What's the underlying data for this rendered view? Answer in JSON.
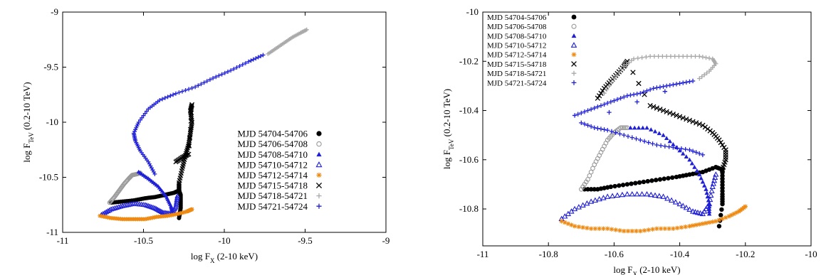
{
  "chart_data": [
    {
      "type": "scatter",
      "xlabel": "log F",
      "xlabel_sub": "X",
      "xlabel_tail": " (2-10 keV)",
      "ylabel": "log F",
      "ylabel_sub": "TeV",
      "ylabel_tail": " (0.2-10 TeV)",
      "xlim": [
        -11,
        -9
      ],
      "ylim": [
        -11,
        -9
      ],
      "xticks": [
        -11,
        -10.5,
        -10,
        -9.5,
        -9
      ],
      "yticks": [
        -11,
        -10.5,
        -10,
        -9.5,
        -9
      ],
      "xtick_labels": [
        "-11",
        "-10.5",
        "-10",
        "-9.5",
        "-9"
      ],
      "ytick_labels": [
        "-11",
        "-10.5",
        "-10",
        "-9.5",
        "-9"
      ],
      "legend_position": "bottom-right",
      "series": [
        {
          "name": "MJD 54704-54706",
          "color": "#000000",
          "marker": "filled-circle",
          "points": [
            [
              -10.7,
              -10.73
            ],
            [
              -10.63,
              -10.72
            ],
            [
              -10.56,
              -10.71
            ],
            [
              -10.49,
              -10.69
            ],
            [
              -10.43,
              -10.68
            ],
            [
              -10.37,
              -10.66
            ],
            [
              -10.31,
              -10.64
            ],
            [
              -10.28,
              -10.62
            ],
            [
              -10.27,
              -10.66
            ],
            [
              -10.27,
              -10.72
            ],
            [
              -10.27,
              -10.78
            ],
            [
              -10.28,
              -10.87
            ]
          ]
        },
        {
          "name": "MJD 54706-54708",
          "color": "#9a9a9a",
          "marker": "open-circle",
          "points": [
            [
              -10.71,
              -10.73
            ],
            [
              -10.68,
              -10.68
            ],
            [
              -10.65,
              -10.62
            ],
            [
              -10.62,
              -10.56
            ],
            [
              -10.59,
              -10.51
            ],
            [
              -10.57,
              -10.48
            ],
            [
              -10.54,
              -10.47
            ],
            [
              -10.52,
              -10.46
            ]
          ]
        },
        {
          "name": "MJD 54708-54710",
          "color": "#1f1fd6",
          "marker": "filled-triangle",
          "points": [
            [
              -10.53,
              -10.45
            ],
            [
              -10.47,
              -10.51
            ],
            [
              -10.41,
              -10.58
            ],
            [
              -10.36,
              -10.67
            ],
            [
              -10.33,
              -10.76
            ],
            [
              -10.32,
              -10.82
            ],
            [
              -10.31,
              -10.83
            ]
          ]
        },
        {
          "name": "MJD 54710-54712",
          "color": "#1f1fd6",
          "marker": "open-triangle",
          "points": [
            [
              -10.76,
              -10.84
            ],
            [
              -10.7,
              -10.79
            ],
            [
              -10.63,
              -10.76
            ],
            [
              -10.56,
              -10.74
            ],
            [
              -10.49,
              -10.75
            ],
            [
              -10.43,
              -10.78
            ],
            [
              -10.38,
              -10.82
            ],
            [
              -10.33,
              -10.83
            ],
            [
              -10.3,
              -10.77
            ],
            [
              -10.29,
              -10.67
            ]
          ]
        },
        {
          "name": "MJD 54712-54714",
          "color": "#ee8a12",
          "marker": "asterisk",
          "points": [
            [
              -10.77,
              -10.85
            ],
            [
              -10.7,
              -10.87
            ],
            [
              -10.63,
              -10.88
            ],
            [
              -10.56,
              -10.88
            ],
            [
              -10.49,
              -10.88
            ],
            [
              -10.42,
              -10.86
            ],
            [
              -10.35,
              -10.85
            ],
            [
              -10.28,
              -10.83
            ],
            [
              -10.23,
              -10.81
            ],
            [
              -10.2,
              -10.79
            ]
          ]
        },
        {
          "name": "MJD 54715-54718",
          "color": "#000000",
          "marker": "cross",
          "points": [
            [
              -10.3,
              -10.36
            ],
            [
              -10.26,
              -10.32
            ],
            [
              -10.22,
              -10.29
            ],
            [
              -10.2,
              -9.84
            ],
            [
              -10.21,
              -9.9
            ],
            [
              -10.2,
              -10.0
            ],
            [
              -10.21,
              -10.1
            ],
            [
              -10.22,
              -10.2
            ],
            [
              -10.24,
              -10.3
            ],
            [
              -10.26,
              -10.42
            ],
            [
              -10.28,
              -10.55
            ],
            [
              -10.28,
              -10.63
            ]
          ]
        },
        {
          "name": "MJD 54718-54721",
          "color": "#a9a9a9",
          "marker": "plus",
          "points": [
            [
              -9.73,
              -9.38
            ],
            [
              -9.68,
              -9.33
            ],
            [
              -9.63,
              -9.28
            ],
            [
              -9.58,
              -9.23
            ],
            [
              -9.53,
              -9.19
            ],
            [
              -9.49,
              -9.16
            ]
          ]
        },
        {
          "name": "MJD 54721-54724",
          "color": "#1f1fd6",
          "marker": "plus",
          "points": [
            [
              -10.43,
              -10.47
            ],
            [
              -10.47,
              -10.36
            ],
            [
              -10.52,
              -10.26
            ],
            [
              -10.55,
              -10.17
            ],
            [
              -10.56,
              -10.1
            ],
            [
              -10.53,
              -10.0
            ],
            [
              -10.47,
              -9.88
            ],
            [
              -10.4,
              -9.8
            ],
            [
              -10.3,
              -9.74
            ],
            [
              -10.18,
              -9.68
            ],
            [
              -10.07,
              -9.6
            ],
            [
              -9.96,
              -9.53
            ],
            [
              -9.85,
              -9.45
            ],
            [
              -9.76,
              -9.39
            ]
          ]
        }
      ]
    },
    {
      "type": "scatter",
      "xlabel": "log F",
      "xlabel_sub": "X",
      "xlabel_tail": " (2-10 keV)",
      "ylabel": "log F",
      "ylabel_sub": "TeV",
      "ylabel_tail": " (0.2-10 TeV)",
      "xlim": [
        -11,
        -10
      ],
      "ylim": [
        -10.95,
        -10
      ],
      "xticks": [
        -11,
        -10.8,
        -10.6,
        -10.4,
        -10.2,
        -10
      ],
      "yticks": [
        -10.8,
        -10.6,
        -10.4,
        -10.2,
        -10
      ],
      "xtick_labels": [
        "-11",
        "-10.8",
        "-10.6",
        "-10.4",
        "-10.2",
        "-10"
      ],
      "ytick_labels": [
        "-10.8",
        "-10.6",
        "-10.4",
        "-10.2",
        "-10"
      ],
      "legend_position": "top-left",
      "series": [
        {
          "name": "MJD 54704-54706",
          "color": "#000000",
          "marker": "filled-circle",
          "points": [
            [
              -10.69,
              -10.72
            ],
            [
              -10.65,
              -10.72
            ],
            [
              -10.61,
              -10.71
            ],
            [
              -10.56,
              -10.7
            ],
            [
              -10.51,
              -10.69
            ],
            [
              -10.46,
              -10.68
            ],
            [
              -10.41,
              -10.67
            ],
            [
              -10.37,
              -10.66
            ],
            [
              -10.33,
              -10.65
            ],
            [
              -10.29,
              -10.63
            ],
            [
              -10.27,
              -10.64
            ],
            [
              -10.27,
              -10.69
            ],
            [
              -10.27,
              -10.74
            ],
            [
              -10.27,
              -10.78
            ],
            [
              -10.28,
              -10.87
            ]
          ]
        },
        {
          "name": "MJD 54706-54708",
          "color": "#9a9a9a",
          "marker": "open-circle",
          "points": [
            [
              -10.7,
              -10.72
            ],
            [
              -10.68,
              -10.68
            ],
            [
              -10.66,
              -10.62
            ],
            [
              -10.64,
              -10.57
            ],
            [
              -10.62,
              -10.52
            ],
            [
              -10.6,
              -10.49
            ],
            [
              -10.58,
              -10.47
            ],
            [
              -10.56,
              -10.47
            ]
          ]
        },
        {
          "name": "MJD 54708-54710",
          "color": "#1f1fd6",
          "marker": "filled-triangle",
          "points": [
            [
              -10.55,
              -10.47
            ],
            [
              -10.5,
              -10.47
            ],
            [
              -10.45,
              -10.5
            ],
            [
              -10.41,
              -10.55
            ],
            [
              -10.37,
              -10.6
            ],
            [
              -10.34,
              -10.66
            ],
            [
              -10.32,
              -10.72
            ],
            [
              -10.31,
              -10.78
            ],
            [
              -10.31,
              -10.82
            ]
          ]
        },
        {
          "name": "MJD 54710-54712",
          "color": "#1f1fd6",
          "marker": "open-triangle",
          "points": [
            [
              -10.76,
              -10.84
            ],
            [
              -10.72,
              -10.8
            ],
            [
              -10.67,
              -10.77
            ],
            [
              -10.62,
              -10.75
            ],
            [
              -10.56,
              -10.74
            ],
            [
              -10.5,
              -10.74
            ],
            [
              -10.45,
              -10.75
            ],
            [
              -10.4,
              -10.78
            ],
            [
              -10.36,
              -10.81
            ],
            [
              -10.33,
              -10.82
            ],
            [
              -10.31,
              -10.78
            ],
            [
              -10.3,
              -10.71
            ],
            [
              -10.29,
              -10.66
            ]
          ]
        },
        {
          "name": "MJD 54712-54714",
          "color": "#ee8a12",
          "marker": "asterisk",
          "points": [
            [
              -10.76,
              -10.85
            ],
            [
              -10.72,
              -10.87
            ],
            [
              -10.67,
              -10.88
            ],
            [
              -10.62,
              -10.88
            ],
            [
              -10.57,
              -10.89
            ],
            [
              -10.52,
              -10.89
            ],
            [
              -10.47,
              -10.88
            ],
            [
              -10.42,
              -10.88
            ],
            [
              -10.37,
              -10.87
            ],
            [
              -10.33,
              -10.86
            ],
            [
              -10.29,
              -10.85
            ],
            [
              -10.25,
              -10.83
            ],
            [
              -10.22,
              -10.81
            ],
            [
              -10.2,
              -10.79
            ]
          ]
        },
        {
          "name": "MJD 54715-54718",
          "color": "#000000",
          "marker": "cross",
          "points": [
            [
              -10.65,
              -10.35
            ],
            [
              -10.63,
              -10.31
            ],
            [
              -10.61,
              -10.28
            ],
            [
              -10.59,
              -10.25
            ],
            [
              -10.57,
              -10.22
            ],
            [
              -10.56,
              -10.2
            ],
            [
              -10.49,
              -10.38
            ],
            [
              -10.45,
              -10.4
            ],
            [
              -10.41,
              -10.42
            ],
            [
              -10.37,
              -10.44
            ],
            [
              -10.33,
              -10.46
            ],
            [
              -10.3,
              -10.49
            ],
            [
              -10.28,
              -10.52
            ],
            [
              -10.26,
              -10.56
            ],
            [
              -10.26,
              -10.6
            ],
            [
              -10.27,
              -10.64
            ]
          ]
        },
        {
          "name": "MJD 54718-54721",
          "color": "#a9a9a9",
          "marker": "plus",
          "points": [
            [
              -10.63,
              -10.33
            ],
            [
              -10.6,
              -10.27
            ],
            [
              -10.57,
              -10.22
            ],
            [
              -10.54,
              -10.19
            ],
            [
              -10.49,
              -10.18
            ],
            [
              -10.44,
              -10.18
            ],
            [
              -10.39,
              -10.18
            ],
            [
              -10.34,
              -10.18
            ],
            [
              -10.3,
              -10.19
            ],
            [
              -10.29,
              -10.21
            ],
            [
              -10.31,
              -10.24
            ],
            [
              -10.34,
              -10.27
            ]
          ]
        },
        {
          "name": "MJD 54721-54724",
          "color": "#1f1fd6",
          "marker": "plus",
          "points": [
            [
              -10.72,
              -10.42
            ],
            [
              -10.68,
              -10.4
            ],
            [
              -10.64,
              -10.38
            ],
            [
              -10.6,
              -10.36
            ],
            [
              -10.56,
              -10.34
            ],
            [
              -10.52,
              -10.33
            ],
            [
              -10.48,
              -10.31
            ],
            [
              -10.44,
              -10.3
            ],
            [
              -10.4,
              -10.29
            ],
            [
              -10.36,
              -10.28
            ],
            [
              -10.7,
              -10.45
            ],
            [
              -10.66,
              -10.47
            ],
            [
              -10.62,
              -10.48
            ],
            [
              -10.57,
              -10.5
            ],
            [
              -10.52,
              -10.52
            ],
            [
              -10.47,
              -10.54
            ],
            [
              -10.42,
              -10.55
            ],
            [
              -10.37,
              -10.56
            ],
            [
              -10.33,
              -10.58
            ]
          ]
        }
      ]
    }
  ]
}
